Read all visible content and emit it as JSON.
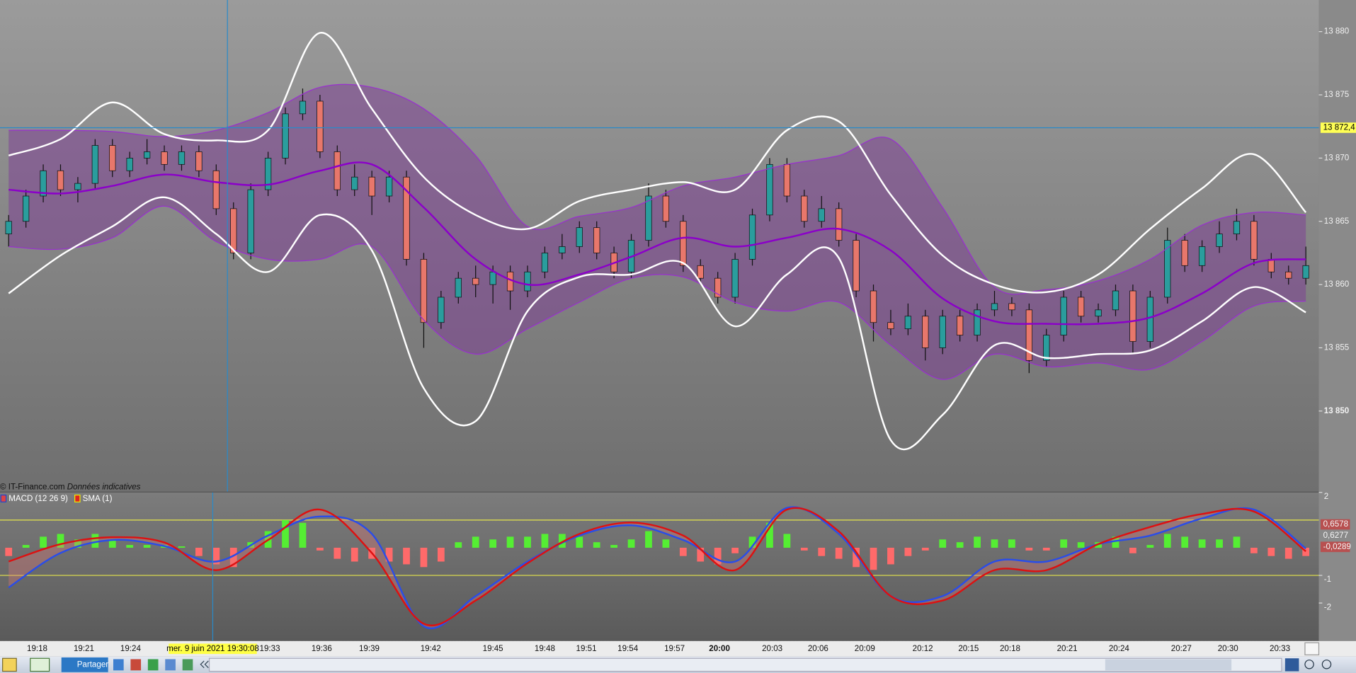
{
  "chart_data": [
    {
      "type": "candlestick",
      "open": [
        13864,
        13865,
        13867,
        13869,
        13867.5,
        13868,
        13871,
        13869,
        13870,
        13870.5,
        13869.5,
        13870.5,
        13869,
        13866,
        13862.5,
        13867.5,
        13870,
        13873.5,
        13874.5,
        13870.5,
        13867.5,
        13868.5,
        13867,
        13868.5,
        13862,
        13857,
        13859,
        13860.5,
        13860,
        13861,
        13859.5,
        13861,
        13862.5,
        13863,
        13864.5,
        13862.5,
        13861,
        13863.5,
        13867,
        13865,
        13861.5,
        13860.5,
        13859,
        13862,
        13865.5,
        13869.5,
        13867,
        13865,
        13866,
        13863.5,
        13859.5,
        13857,
        13856.5,
        13857.5,
        13855,
        13857.5,
        13856,
        13858,
        13858.5,
        13858,
        13854,
        13856,
        13859,
        13857.5,
        13858,
        13859.5,
        13855.5,
        13859,
        13863.5,
        13861.5,
        13863,
        13864,
        13865,
        13862,
        13861,
        13860.5
      ],
      "high": [
        13865.5,
        13867.5,
        13869.5,
        13869.5,
        13868.5,
        13871.5,
        13871.5,
        13870.5,
        13871.5,
        13871,
        13871,
        13871,
        13869.5,
        13866.5,
        13868,
        13870.5,
        13874,
        13875.5,
        13875,
        13871,
        13869.5,
        13869,
        13869,
        13869,
        13862.5,
        13859.5,
        13861,
        13861.5,
        13861.5,
        13861.5,
        13861.5,
        13863,
        13864,
        13865,
        13865,
        13863,
        13864,
        13868,
        13867.5,
        13865.5,
        13862,
        13861,
        13862.5,
        13866,
        13870,
        13870,
        13867.5,
        13867,
        13866.5,
        13864,
        13860,
        13858,
        13858.5,
        13858,
        13858,
        13858,
        13858.5,
        13859.5,
        13859,
        13858.5,
        13856.5,
        13859.5,
        13859.5,
        13858.5,
        13860,
        13860,
        13859.5,
        13864.5,
        13864,
        13863.5,
        13865,
        13866,
        13865.5,
        13862.5,
        13861.5,
        13863
      ],
      "low": [
        13863,
        13864.5,
        13866.5,
        13867,
        13866.5,
        13867.5,
        13868.5,
        13868.5,
        13869.5,
        13869,
        13869,
        13868.5,
        13865.5,
        13862,
        13862,
        13867,
        13869.5,
        13873,
        13870,
        13867,
        13867,
        13865.5,
        13866.5,
        13861.5,
        13855,
        13856.5,
        13858.5,
        13859,
        13858.5,
        13858,
        13859,
        13860.5,
        13862,
        13862.5,
        13862,
        13860.5,
        13860.5,
        13863,
        13864.5,
        13861,
        13860,
        13858.5,
        13858.5,
        13861.5,
        13865,
        13866.5,
        13864.5,
        13864.5,
        13863,
        13859,
        13855.5,
        13856,
        13856,
        13854,
        13854.5,
        13855.5,
        13855.5,
        13857.5,
        13857.5,
        13853,
        13853.5,
        13855.5,
        13857,
        13857,
        13857.5,
        13854.5,
        13855,
        13858.5,
        13861,
        13861,
        13862.5,
        13863.5,
        13861.5,
        13860.5,
        13860,
        13860
      ],
      "close": [
        13865,
        13867,
        13869,
        13867.5,
        13868,
        13871,
        13869,
        13870,
        13870.5,
        13869.5,
        13870.5,
        13869,
        13866,
        13862.5,
        13867.5,
        13870,
        13873.5,
        13874.5,
        13870.5,
        13867.5,
        13868.5,
        13867,
        13868.5,
        13862,
        13857,
        13859,
        13860.5,
        13860,
        13861,
        13859.5,
        13861,
        13862.5,
        13863,
        13864.5,
        13862.5,
        13861,
        13863.5,
        13867,
        13865,
        13861.5,
        13860.5,
        13859,
        13862,
        13865.5,
        13869.5,
        13867,
        13865,
        13866,
        13863.5,
        13859.5,
        13857,
        13856.5,
        13857.5,
        13855,
        13857.5,
        13856,
        13858,
        13858.5,
        13858,
        13854,
        13856,
        13859,
        13857.5,
        13858,
        13859.5,
        13855.5,
        13859,
        13863.5,
        13861.5,
        13863,
        13864,
        13865,
        13862,
        13861,
        13860.5,
        13861.5
      ],
      "up_color": "#2a9d9d",
      "down_color": "#e8776b",
      "overlays": {
        "x": [
          0,
          3,
          6,
          9,
          12,
          15,
          18,
          21,
          24,
          27,
          30,
          33,
          36,
          39,
          42,
          45,
          48,
          51,
          54,
          57,
          60,
          63,
          66,
          69,
          72,
          75
        ],
        "band_fill": "rgba(125,60,150,0.5)",
        "series": [
          {
            "color": "#9a2fd0",
            "values": [
              13872.2,
              13872.2,
              13872.1,
              13871.7,
              13872.2,
              13873.6,
              13875.6,
              13875.6,
              13873.9,
              13870.2,
              13864.6,
              13865.4,
              13866.1,
              13867.8,
              13868.5,
              13869.5,
              13870.2,
              13871.5,
              13866.1,
              13859.8,
              13859.6,
              13860.3,
              13862.0,
              13864.7,
              13865.7,
              13865.5
            ]
          },
          {
            "color": "#8b00c9",
            "values": [
              13867.5,
              13867.2,
              13867.8,
              13868.7,
              13868.1,
              13867.9,
              13869.0,
              13869.5,
              13866.1,
              13862.0,
              13860.0,
              13860.8,
              13862.2,
              13863.7,
              13863.0,
              13863.7,
              13864.4,
              13862.7,
              13858.9,
              13857.1,
              13856.9,
              13856.9,
              13857.4,
              13859.3,
              13861.7,
              13862.0
            ]
          },
          {
            "color": "#9a2fd0",
            "values": [
              13863.0,
              13862.8,
              13863.7,
              13866.2,
              13863.4,
              13862.0,
              13862.0,
              13863.0,
              13857.2,
              13854.5,
              13856.5,
              13858.6,
              13860.5,
              13860.6,
              13858.6,
              13857.9,
              13858.6,
              13855.2,
              13852.5,
              13854.5,
              13853.5,
              13853.8,
              13853.3,
              13855.5,
              13858.3,
              13858.7
            ]
          },
          {
            "color": "#ffffff",
            "values": [
              13870.2,
              13871.5,
              13874.4,
              13871.9,
              13871.4,
              13872.2,
              13879.9,
              13873.9,
              13868.5,
              13865.5,
              13864.4,
              13866.6,
              13867.5,
              13868.1,
              13867.5,
              13872.2,
              13872.9,
              13867.1,
              13862.3,
              13860.0,
              13859.4,
              13860.8,
              13864.4,
              13867.6,
              13870.3,
              13865.7
            ]
          },
          {
            "color": "#ffffff",
            "values": [
              13859.3,
              13862.3,
              13864.6,
              13866.9,
              13864.0,
              13861.0,
              13865.5,
              13862.7,
              13851.8,
              13849.2,
              13857.9,
              13860.6,
              13860.8,
              13861.7,
              13856.7,
              13860.8,
              13862.1,
              13847.7,
              13849.7,
              13855.2,
              13854.2,
              13854.5,
              13854.8,
              13857.1,
              13859.8,
              13857.8
            ]
          }
        ]
      },
      "ylim": [
        13843.7,
        13882.5
      ],
      "yticks": [
        {
          "value": 13850,
          "label": "13 850"
        },
        {
          "value": 13855,
          "label": "13 855"
        },
        {
          "value": 13860,
          "label": "13 860"
        },
        {
          "value": 13865,
          "label": "13 865"
        },
        {
          "value": 13870,
          "label": "13 870"
        },
        {
          "value": 13875,
          "label": "13 875"
        },
        {
          "value": 13880,
          "label": "13 880"
        }
      ],
      "crosshair_price": {
        "value": 13872.4,
        "label": "13 872,4"
      }
    },
    {
      "type": "macd",
      "legend": [
        "MACD (12 26 9)",
        "SMA (1)"
      ],
      "histogram": [
        -0.3,
        0.1,
        0.4,
        0.5,
        0.3,
        0.5,
        0.3,
        0.1,
        0.1,
        0.1,
        0.05,
        -0.3,
        -0.6,
        -0.7,
        0.2,
        0.6,
        1.0,
        0.9,
        -0.1,
        -0.4,
        -0.5,
        -0.4,
        -0.5,
        -0.6,
        -0.7,
        -0.5,
        0.2,
        0.4,
        0.3,
        0.4,
        0.4,
        0.5,
        0.5,
        0.4,
        0.2,
        0.1,
        0.3,
        0.6,
        0.3,
        -0.3,
        -0.5,
        -0.6,
        -0.2,
        0.4,
        0.9,
        0.5,
        -0.1,
        -0.3,
        -0.4,
        -0.7,
        -0.8,
        -0.6,
        -0.3,
        -0.1,
        0.3,
        0.2,
        0.4,
        0.3,
        0.3,
        -0.1,
        -0.1,
        0.3,
        0.2,
        0.2,
        0.4,
        -0.2,
        0.1,
        0.5,
        0.4,
        0.3,
        0.3,
        0.4,
        -0.2,
        -0.3,
        -0.4,
        -0.3
      ],
      "histogram_colors": {
        "positive": "#55ee33",
        "negative": "#ff6a6a"
      },
      "x": [
        0,
        3,
        6,
        9,
        12,
        15,
        18,
        21,
        24,
        27,
        30,
        33,
        36,
        39,
        42,
        45,
        48,
        51,
        54,
        57,
        60,
        63,
        66,
        69,
        72,
        75
      ],
      "fill_color": "rgba(225,120,120,0.35)",
      "series": [
        {
          "color": "#2a4de8",
          "values": [
            -1.44,
            -0.19,
            0.28,
            0.06,
            -0.5,
            0.44,
            1.13,
            0.5,
            -2.84,
            -1.75,
            -0.5,
            0.44,
            0.81,
            0.28,
            -0.5,
            1.44,
            0.5,
            -1.75,
            -1.75,
            -0.5,
            -0.5,
            0.13,
            0.44,
            1.06,
            1.38,
            -0.03
          ]
        },
        {
          "color": "#dd1111",
          "values": [
            -0.5,
            0.13,
            0.38,
            0.19,
            -0.81,
            0.28,
            1.38,
            -0.19,
            -2.75,
            -1.91,
            -0.56,
            0.5,
            0.91,
            0.44,
            -0.81,
            1.38,
            0.59,
            -1.75,
            -1.91,
            -0.81,
            -0.81,
            0.13,
            0.75,
            1.22,
            1.31,
            -0.13
          ]
        }
      ],
      "levels": [
        1,
        -1
      ],
      "level_color": "#e6e64a",
      "ylim": [
        -3.375,
        2
      ],
      "yticks": [
        2,
        -1,
        -2
      ],
      "last_values": [
        {
          "value": 0.6578,
          "label": "0,6578"
        },
        {
          "value": 0.6277,
          "label": "0,6277"
        },
        {
          "value": -0.0289,
          "label": "-0,0289"
        }
      ]
    }
  ],
  "time_axis": {
    "labels": [
      "19:18",
      "19:21",
      "19:24",
      "19:33",
      "19:36",
      "19:39",
      "19:42",
      "19:45",
      "19:48",
      "19:51",
      "19:54",
      "19:57",
      "20:00",
      "20:03",
      "20:06",
      "20:09",
      "20:12",
      "20:15",
      "20:18",
      "20:21",
      "20:24",
      "20:27",
      "20:30",
      "20:33"
    ],
    "crosshair_label": "mer. 9 juin 2021 19:30:08"
  },
  "source": "© IT-Finance.com",
  "source_note": "Données indicatives",
  "toolbar": {
    "share": "Partager"
  }
}
